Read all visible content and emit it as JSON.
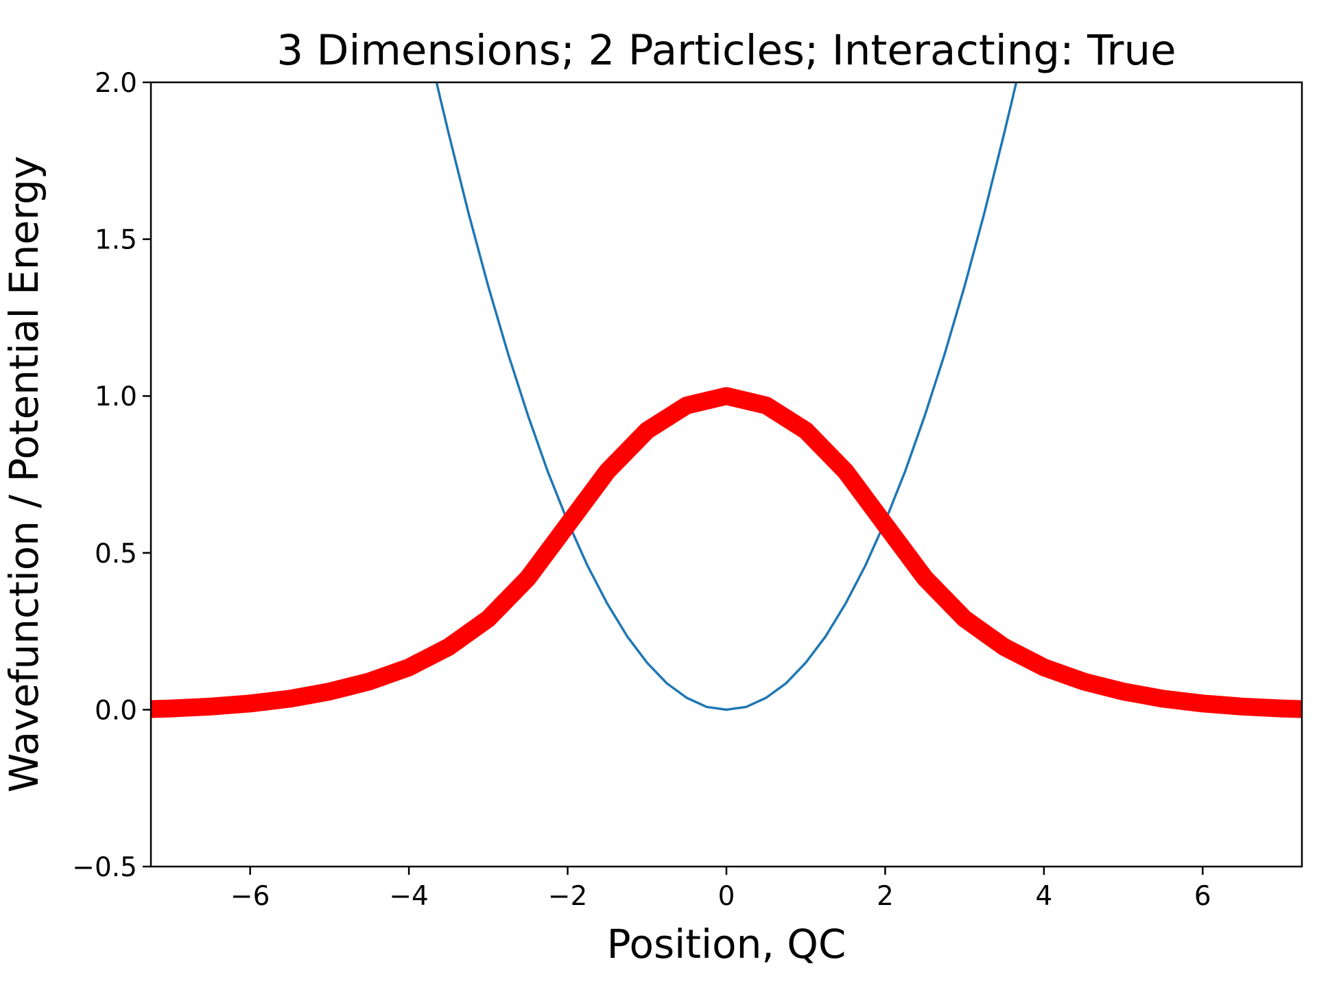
{
  "chart_data": {
    "type": "line",
    "title": "3 Dimensions; 2 Particles; Interacting: True",
    "xlabel": "Position, QC",
    "ylabel": "Wavefunction / Potential Energy",
    "xlim": [
      -7.25,
      7.25
    ],
    "ylim": [
      -0.5,
      2.0
    ],
    "grid": false,
    "x_ticks": [
      -6,
      -4,
      -2,
      0,
      2,
      4,
      6
    ],
    "x_tick_labels": [
      "−6",
      "−4",
      "−2",
      "0",
      "2",
      "4",
      "6"
    ],
    "y_ticks": [
      -0.5,
      0.0,
      0.5,
      1.0,
      1.5,
      2.0
    ],
    "y_tick_labels": [
      "−0.5",
      "0.0",
      "0.5",
      "1.0",
      "1.5",
      "2.0"
    ],
    "series": [
      {
        "color": "#1f77b4",
        "style": "thin",
        "x": [
          -3.7,
          -3.6,
          -3.5,
          -3.25,
          -3.0,
          -2.75,
          -2.5,
          -2.25,
          -2.0,
          -1.75,
          -1.5,
          -1.25,
          -1.0,
          -0.75,
          -0.5,
          -0.25,
          0.0,
          0.25,
          0.5,
          0.75,
          1.0,
          1.25,
          1.5,
          1.75,
          2.0,
          2.25,
          2.5,
          2.75,
          3.0,
          3.25,
          3.5,
          3.6,
          3.7
        ],
        "y": [
          2.053,
          1.944,
          1.838,
          1.584,
          1.35,
          1.134,
          0.938,
          0.759,
          0.6,
          0.459,
          0.338,
          0.234,
          0.15,
          0.084,
          0.038,
          0.009,
          0.0,
          0.009,
          0.038,
          0.084,
          0.15,
          0.234,
          0.338,
          0.459,
          0.6,
          0.759,
          0.938,
          1.134,
          1.35,
          1.584,
          1.838,
          1.944,
          2.053
        ]
      },
      {
        "color": "#ff0000",
        "style": "thick",
        "x": [
          -7.25,
          -7.0,
          -6.5,
          -6.0,
          -5.5,
          -5.0,
          -4.5,
          -4.0,
          -3.5,
          -3.0,
          -2.5,
          -2.0,
          -1.5,
          -1.0,
          -0.5,
          0.0,
          0.5,
          1.0,
          1.5,
          2.0,
          2.5,
          3.0,
          3.5,
          4.0,
          4.5,
          5.0,
          5.5,
          6.0,
          6.5,
          7.0,
          7.25
        ],
        "y": [
          0.002,
          0.004,
          0.01,
          0.02,
          0.035,
          0.058,
          0.09,
          0.135,
          0.2,
          0.29,
          0.42,
          0.59,
          0.76,
          0.89,
          0.97,
          1.0,
          0.97,
          0.89,
          0.76,
          0.59,
          0.42,
          0.29,
          0.2,
          0.135,
          0.09,
          0.058,
          0.035,
          0.02,
          0.01,
          0.004,
          0.002
        ]
      }
    ]
  }
}
